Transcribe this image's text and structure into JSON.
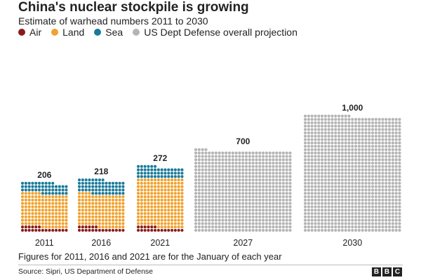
{
  "title": "China's nuclear stockpile is growing",
  "subtitle": "Estimate of warhead numbers 2011 to 2030",
  "legend": [
    {
      "label": "Air",
      "color": "#8b1a1a"
    },
    {
      "label": "Land",
      "color": "#f0a22e"
    },
    {
      "label": "Sea",
      "color": "#1a7a9a"
    },
    {
      "label": "US Dept Defense overall projection",
      "color": "#b4b4b4"
    }
  ],
  "footnote": "Figures for 2011, 2016 and 2021 are for the January of each year",
  "source": "Source: Sipri, US Department of Defense",
  "brand": [
    "B",
    "B",
    "C"
  ],
  "chart_data": {
    "type": "bar",
    "title": "China's nuclear stockpile is growing",
    "subtitle": "Estimate of warhead numbers 2011 to 2030",
    "categories": [
      "2011",
      "2016",
      "2021",
      "2027",
      "2030"
    ],
    "totals": [
      "206",
      "218",
      "272",
      "700",
      "1,000"
    ],
    "series": [
      {
        "name": "Air",
        "color": "#8b1a1a",
        "values": [
          20,
          20,
          20,
          0,
          0
        ]
      },
      {
        "name": "Land",
        "color": "#f0a22e",
        "values": [
          140,
          138,
          204,
          0,
          0
        ]
      },
      {
        "name": "Sea",
        "color": "#1a7a9a",
        "values": [
          46,
          60,
          48,
          0,
          0
        ]
      },
      {
        "name": "US Dept Defense overall projection",
        "color": "#b4b4b4",
        "values": [
          0,
          0,
          0,
          700,
          1000
        ]
      }
    ],
    "total_values": [
      206,
      218,
      272,
      700,
      1000
    ],
    "xlabel": "",
    "ylabel": "",
    "legend_position": "top-left"
  }
}
